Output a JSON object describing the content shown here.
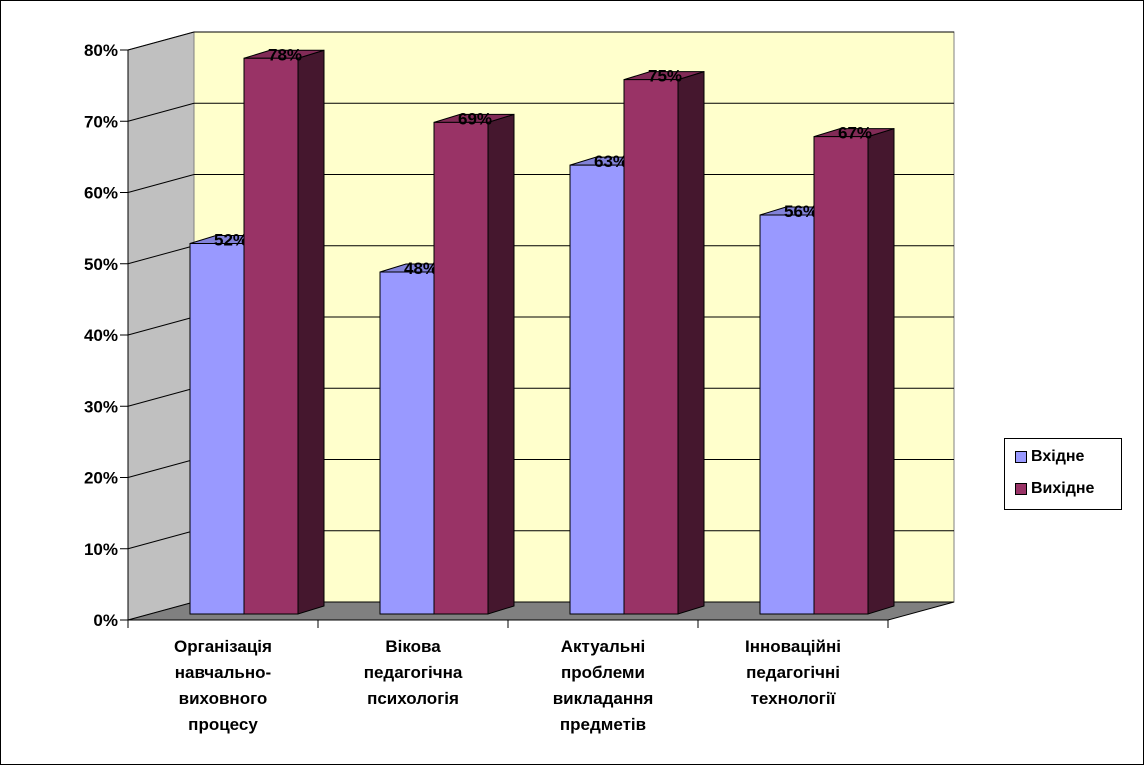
{
  "chart_data": {
    "type": "bar",
    "categories": [
      [
        "Організація",
        "навчально-",
        "виховного",
        "процесу"
      ],
      [
        "Вікова",
        "педагогічна",
        "психологія"
      ],
      [
        "Актуальні",
        "проблеми",
        "викладання",
        "предметів"
      ],
      [
        "Інноваційні",
        "педагогічні",
        "технології"
      ]
    ],
    "series": [
      {
        "name": "Вхідне",
        "values": [
          52,
          48,
          63,
          56
        ],
        "labels": [
          "52%",
          "48%",
          "63%",
          "56%"
        ],
        "color": "#9999FF"
      },
      {
        "name": "Вихідне",
        "values": [
          78,
          69,
          75,
          67
        ],
        "labels": [
          "78%",
          "69%",
          "75%",
          "67%"
        ],
        "color": "#993366"
      }
    ],
    "yticks": [
      "0%",
      "10%",
      "20%",
      "30%",
      "40%",
      "50%",
      "60%",
      "70%",
      "80%"
    ],
    "ylim": [
      0,
      80
    ],
    "wall_color": "#FFFFCC",
    "floor_color": "#808080",
    "grid": true,
    "legend_position": "right"
  },
  "legend": {
    "items": [
      "Вхідне",
      "Вихідне"
    ]
  }
}
